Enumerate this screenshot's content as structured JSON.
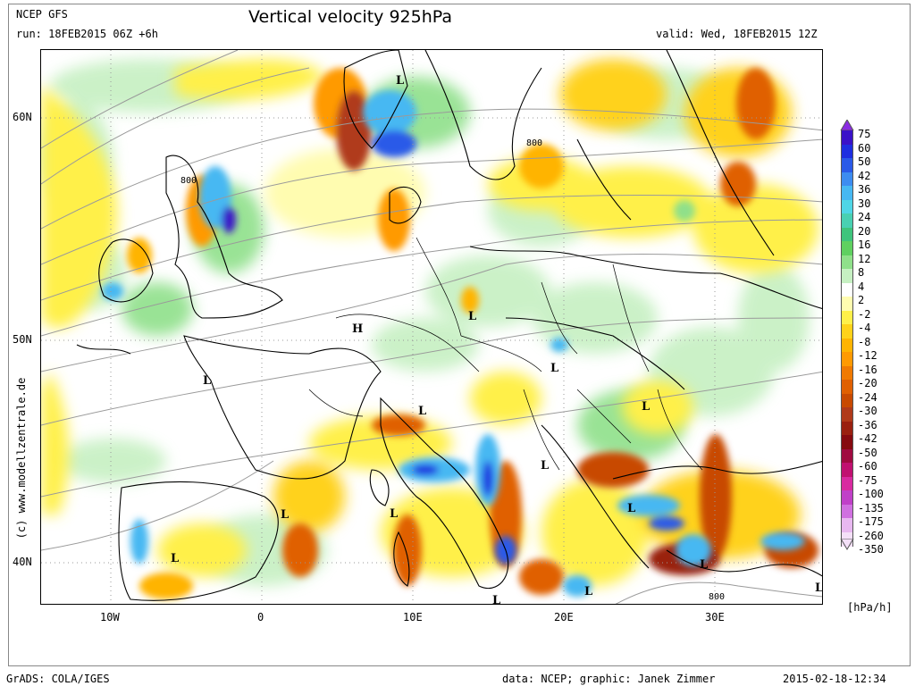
{
  "header": {
    "model": "NCEP GFS",
    "run": "run: 18FEB2015 06Z +6h",
    "title": "Vertical velocity 925hPa",
    "valid": "valid: Wed, 18FEB2015 12Z"
  },
  "axes": {
    "lat_labels": [
      "60N",
      "50N",
      "40N"
    ],
    "lon_labels": [
      "10W",
      "0",
      "10E",
      "20E",
      "30E"
    ]
  },
  "credit": "(c) www.modellzentrale.de",
  "colorbar": {
    "units": "[hPa/h]",
    "levels": [
      "75",
      "60",
      "50",
      "42",
      "36",
      "30",
      "24",
      "20",
      "16",
      "12",
      "8",
      "4",
      "2",
      "-2",
      "-4",
      "-8",
      "-12",
      "-16",
      "-20",
      "-24",
      "-30",
      "-36",
      "-42",
      "-50",
      "-60",
      "-75",
      "-100",
      "-135",
      "-175",
      "-260",
      "-350"
    ],
    "colors": [
      "#8a2be2",
      "#3a12c8",
      "#1e2ee0",
      "#2a5ae8",
      "#3d8cf0",
      "#47b8f2",
      "#4fd6e6",
      "#49d0b2",
      "#3fc47c",
      "#5fd060",
      "#8fe08a",
      "#c6f0c2",
      "#ffffff",
      "#fffcb0",
      "#fff04a",
      "#ffd21a",
      "#ffb400",
      "#ff9a00",
      "#f07a00",
      "#e06000",
      "#c84a00",
      "#b03a1a",
      "#9a2010",
      "#860a10",
      "#a00a40",
      "#c01070",
      "#d82aa0",
      "#c040c8",
      "#d070e0",
      "#e8b8f0",
      "#f4e0f8"
    ]
  },
  "map_labels": {
    "lows": [
      "L",
      "L",
      "L",
      "L",
      "L",
      "L",
      "L",
      "L",
      "L",
      "L",
      "L",
      "L",
      "L",
      "L",
      "L"
    ],
    "highs": [
      "H"
    ],
    "contour_values": [
      "800",
      "800",
      "800"
    ]
  },
  "footer": {
    "left": "GrADS: COLA/IGES",
    "middle": "data: NCEP; graphic: Janek Zimmer",
    "right": "2015-02-18-12:34"
  }
}
